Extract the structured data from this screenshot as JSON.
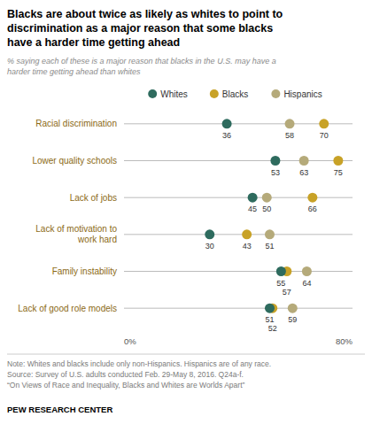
{
  "chart_data": {
    "type": "dot",
    "title": "Blacks are about twice as likely as whites to point to\ndiscrimination as a major reason that some blacks\nhave a harder time getting ahead",
    "subtitle": "% saying each of these is a major reason that blacks in the U.S. may have a\nharder time getting ahead than whites",
    "note": "Note: Whites and blacks include only non-Hispanics. Hispanics are of any race.\nSource: Survey of U.S. adults conducted Feb. 29-May 8, 2016. Q24a-f.\n“On Views of Race and Inequality, Blacks and Whites are Worlds Apart”",
    "source": "PEW RESEARCH CENTER",
    "categories": [
      "Racial discrimination",
      "Lower quality schools",
      "Lack of jobs",
      "Lack of motivation to\nwork hard",
      "Family instability",
      "Lack of good role models"
    ],
    "series": [
      {
        "name": "Whites",
        "color": "#2e6b5e",
        "values": [
          36,
          53,
          45,
          30,
          55,
          51
        ]
      },
      {
        "name": "Blacks",
        "color": "#c8a227",
        "values": [
          70,
          75,
          66,
          43,
          57,
          52
        ]
      },
      {
        "name": "Hispanics",
        "color": "#b5aa7a",
        "values": [
          58,
          63,
          50,
          51,
          64,
          59
        ]
      }
    ],
    "xlim": [
      0,
      80
    ],
    "xticks": [
      {
        "value": 0,
        "label": "0%"
      },
      {
        "value": 80,
        "label": "80%"
      }
    ],
    "data_labels": true,
    "legend": "top"
  }
}
